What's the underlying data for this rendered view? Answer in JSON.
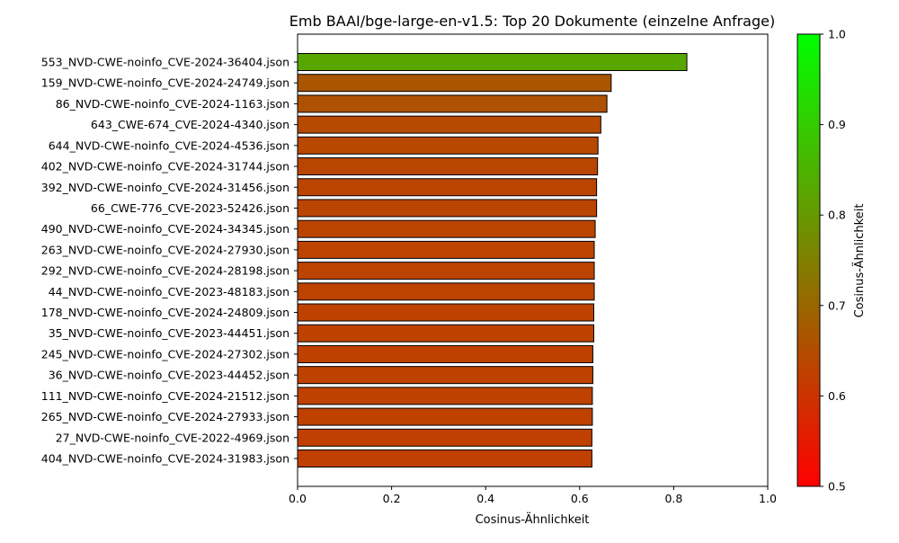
{
  "chart_data": {
    "type": "bar",
    "orientation": "horizontal",
    "title": "Emb BAAI/bge-large-en-v1.5: Top 20 Dokumente (einzelne Anfrage)",
    "xlabel": "Cosinus-Ähnlichkeit",
    "ylabel": "",
    "xlim": [
      0,
      1.0
    ],
    "xticks": [
      0.0,
      0.2,
      0.4,
      0.6,
      0.8,
      1.0
    ],
    "xtick_labels": [
      "0.0",
      "0.2",
      "0.4",
      "0.6",
      "0.8",
      "1.0"
    ],
    "grid": false,
    "bar_edge_color": "#000000",
    "categories": [
      "553_NVD-CWE-noinfo_CVE-2024-36404.json",
      "159_NVD-CWE-noinfo_CVE-2024-24749.json",
      "86_NVD-CWE-noinfo_CVE-2024-1163.json",
      "643_CWE-674_CVE-2024-4340.json",
      "644_NVD-CWE-noinfo_CVE-2024-4536.json",
      "402_NVD-CWE-noinfo_CVE-2024-31744.json",
      "392_NVD-CWE-noinfo_CVE-2024-31456.json",
      "66_CWE-776_CVE-2023-52426.json",
      "490_NVD-CWE-noinfo_CVE-2024-34345.json",
      "263_NVD-CWE-noinfo_CVE-2024-27930.json",
      "292_NVD-CWE-noinfo_CVE-2024-28198.json",
      "44_NVD-CWE-noinfo_CVE-2023-48183.json",
      "178_NVD-CWE-noinfo_CVE-2024-24809.json",
      "35_NVD-CWE-noinfo_CVE-2023-44451.json",
      "245_NVD-CWE-noinfo_CVE-2024-27302.json",
      "36_NVD-CWE-noinfo_CVE-2023-44452.json",
      "111_NVD-CWE-noinfo_CVE-2024-21512.json",
      "265_NVD-CWE-noinfo_CVE-2024-27933.json",
      "27_NVD-CWE-noinfo_CVE-2022-4969.json",
      "404_NVD-CWE-noinfo_CVE-2024-31983.json"
    ],
    "values": [
      0.828,
      0.667,
      0.658,
      0.645,
      0.639,
      0.638,
      0.636,
      0.636,
      0.633,
      0.631,
      0.631,
      0.631,
      0.63,
      0.63,
      0.628,
      0.628,
      0.627,
      0.627,
      0.626,
      0.626
    ],
    "colorbar": {
      "label": "Cosinus-Ähnlichkeit",
      "range": [
        0.5,
        1.0
      ],
      "ticks": [
        0.5,
        0.6,
        0.7,
        0.8,
        0.9,
        1.0
      ],
      "tick_labels": [
        "0.5",
        "0.6",
        "0.7",
        "0.8",
        "0.9",
        "1.0"
      ],
      "color_low": "#ff0000",
      "color_high": "#00ff00"
    }
  }
}
